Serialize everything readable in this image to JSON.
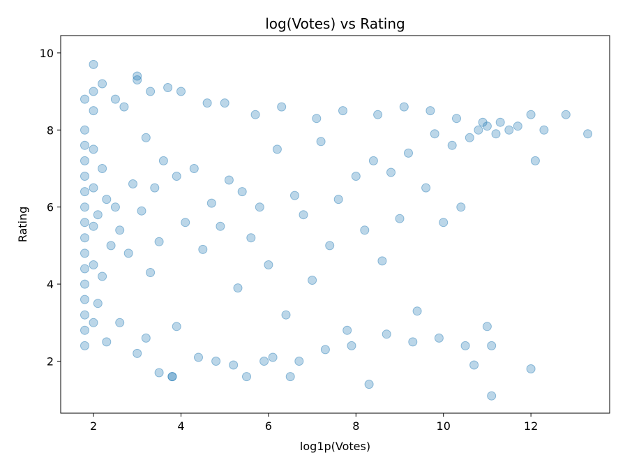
{
  "chart_data": {
    "type": "scatter",
    "title": "log(Votes) vs Rating",
    "xlabel": "log1p(Votes)",
    "ylabel": "Rating",
    "xlim": [
      1.25,
      13.8
    ],
    "ylim": [
      0.65,
      10.45
    ],
    "xticks": [
      2,
      4,
      6,
      8,
      10,
      12
    ],
    "yticks": [
      2,
      4,
      6,
      8,
      10
    ],
    "grid": false,
    "legend": "none",
    "marker_color": "#1f77b4",
    "marker_alpha": 0.3,
    "sample_points_approx": true,
    "x": [
      1.8,
      1.8,
      1.8,
      1.8,
      1.8,
      1.8,
      1.8,
      1.8,
      1.8,
      1.8,
      1.8,
      1.8,
      1.8,
      1.8,
      1.8,
      1.8,
      2.0,
      2.0,
      2.0,
      2.0,
      2.0,
      2.0,
      2.0,
      2.1,
      2.1,
      2.2,
      2.2,
      2.3,
      2.3,
      2.4,
      2.5,
      2.6,
      2.7,
      2.8,
      2.9,
      3.0,
      3.0,
      3.1,
      3.2,
      3.3,
      3.4,
      3.5,
      3.6,
      3.7,
      3.8,
      3.9,
      4.1,
      4.3,
      4.5,
      4.7,
      4.9,
      5.1,
      5.3,
      5.4,
      5.6,
      5.8,
      6.0,
      6.2,
      6.4,
      6.6,
      6.8,
      7.0,
      7.2,
      7.4,
      7.6,
      7.8,
      8.0,
      8.2,
      8.4,
      8.6,
      8.8,
      9.0,
      9.2,
      9.4,
      9.6,
      9.8,
      10.0,
      10.2,
      10.4,
      10.6,
      10.8,
      11.0,
      11.2,
      11.3,
      11.5,
      11.7,
      12.0,
      12.1,
      12.3,
      12.8,
      13.3,
      11.1,
      12.0,
      11.0,
      10.7,
      8.3,
      6.5,
      5.5,
      3.8,
      3.5,
      2.0,
      2.2,
      2.5,
      3.0,
      3.3,
      4.0,
      4.6,
      5.0,
      5.7,
      6.3,
      7.1,
      7.7,
      8.5,
      9.1,
      9.7,
      10.3,
      10.9,
      2.6,
      3.2,
      3.9,
      4.4,
      4.8,
      5.2,
      5.9,
      6.1,
      6.7,
      7.3,
      7.9,
      8.7,
      9.3,
      9.9,
      10.5,
      11.1
    ],
    "y": [
      2.4,
      2.8,
      3.2,
      3.6,
      4.0,
      4.4,
      4.8,
      5.2,
      5.6,
      6.0,
      6.4,
      6.8,
      7.2,
      7.6,
      8.0,
      8.8,
      3.0,
      4.5,
      5.5,
      6.5,
      7.5,
      8.5,
      9.0,
      3.5,
      5.8,
      4.2,
      7.0,
      2.5,
      6.2,
      5.0,
      6.0,
      5.4,
      8.6,
      4.8,
      6.6,
      9.4,
      2.2,
      5.9,
      7.8,
      4.3,
      6.5,
      5.1,
      7.2,
      9.1,
      1.6,
      6.8,
      5.6,
      7.0,
      4.9,
      6.1,
      5.5,
      6.7,
      3.9,
      6.4,
      5.2,
      6.0,
      4.5,
      7.5,
      3.2,
      6.3,
      5.8,
      4.1,
      7.7,
      5.0,
      6.2,
      2.8,
      6.8,
      5.4,
      7.2,
      4.6,
      6.9,
      5.7,
      7.4,
      3.3,
      6.5,
      7.9,
      5.6,
      7.6,
      6.0,
      7.8,
      8.0,
      8.1,
      7.9,
      8.2,
      8.0,
      8.1,
      8.4,
      7.2,
      8.0,
      8.4,
      7.9,
      1.1,
      1.8,
      2.9,
      1.9,
      1.4,
      1.6,
      1.6,
      1.6,
      1.7,
      9.7,
      9.2,
      8.8,
      9.3,
      9.0,
      9.0,
      8.7,
      8.7,
      8.4,
      8.6,
      8.3,
      8.5,
      8.4,
      8.6,
      8.5,
      8.3,
      8.2,
      3.0,
      2.6,
      2.9,
      2.1,
      2.0,
      1.9,
      2.0,
      2.1,
      2.0,
      2.3,
      2.4,
      2.7,
      2.5,
      2.6,
      2.4,
      2.4
    ]
  }
}
